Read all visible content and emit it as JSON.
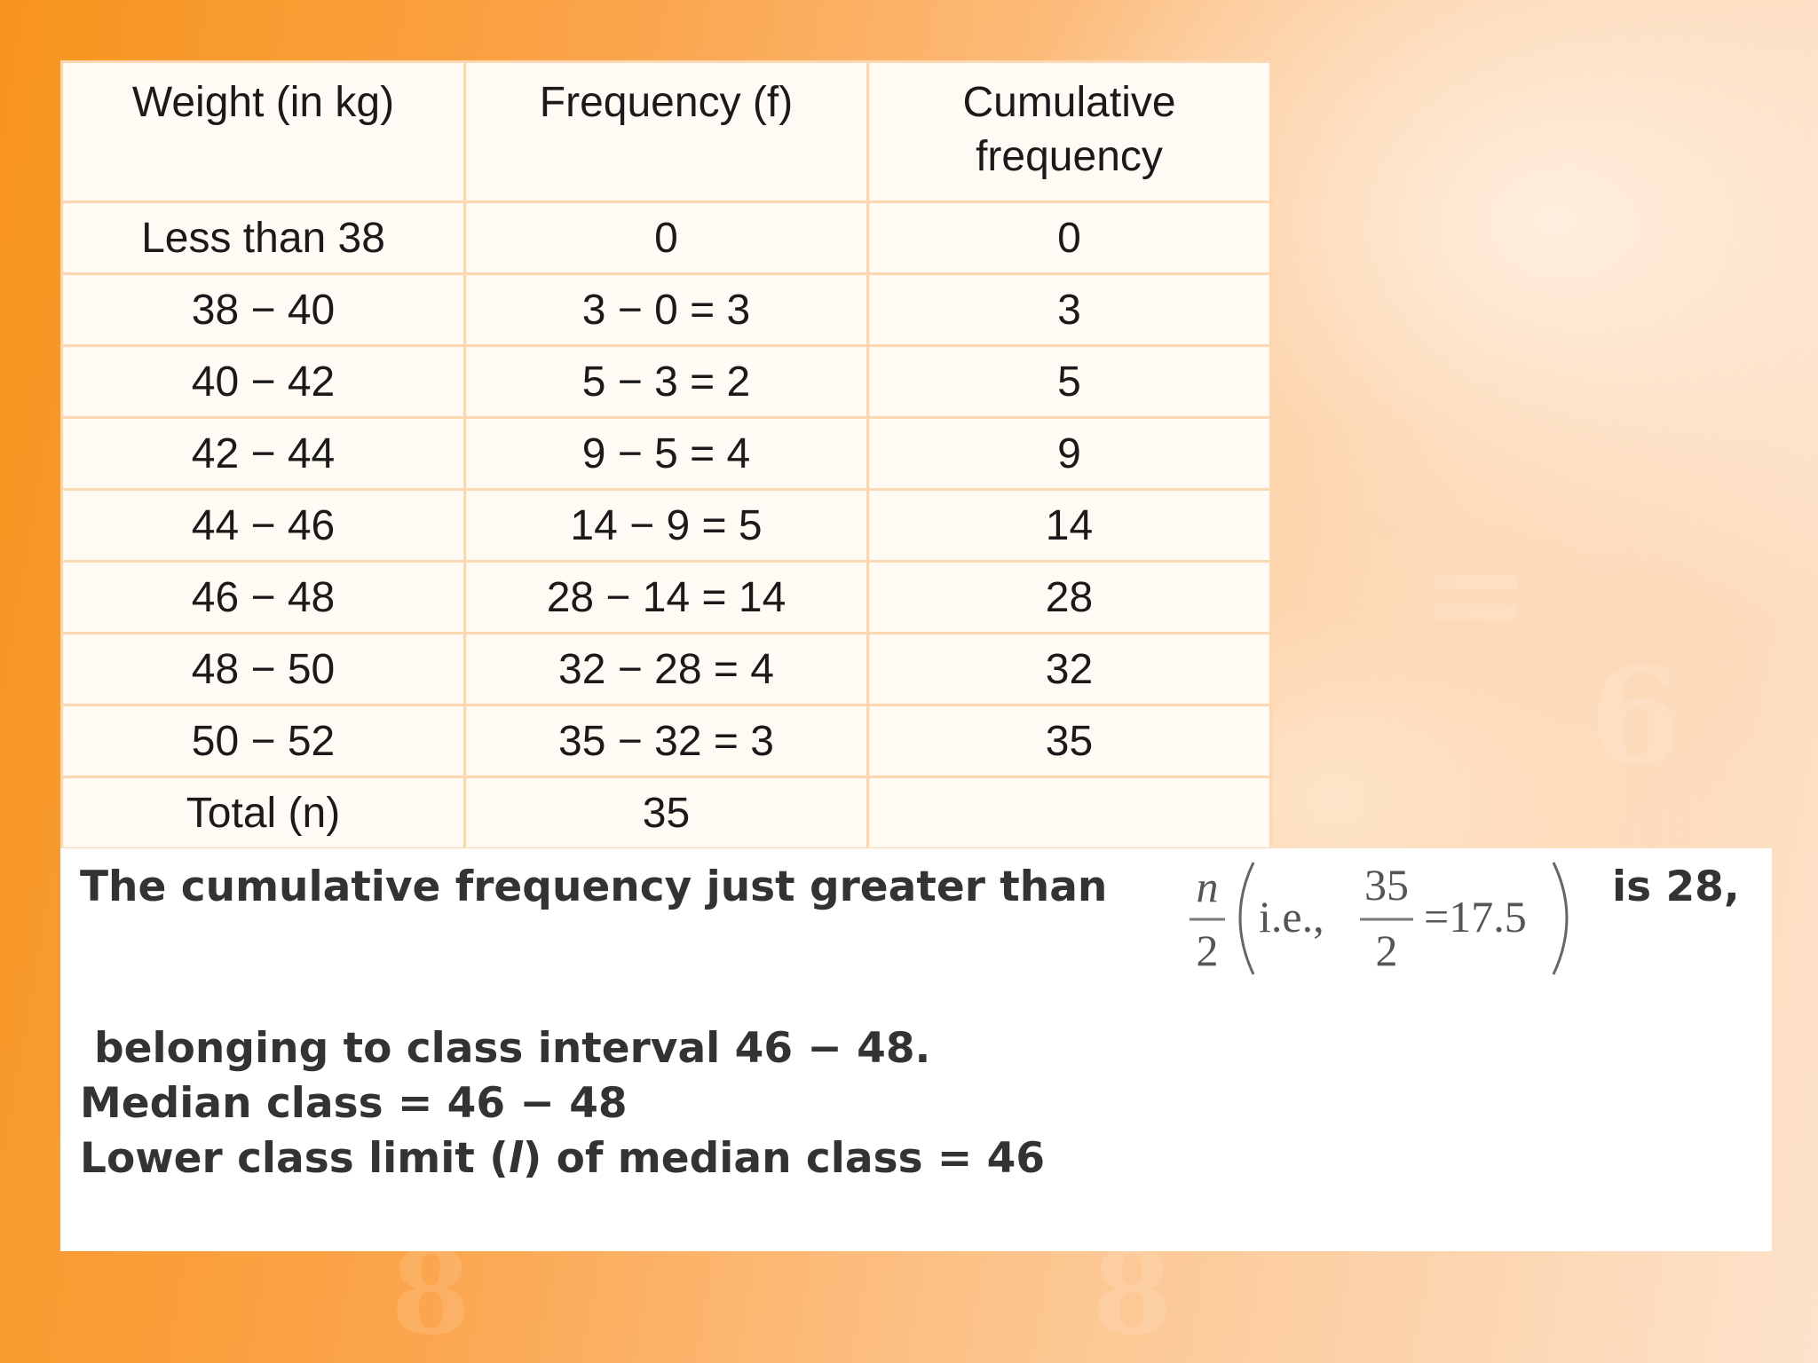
{
  "table": {
    "headers": [
      "Weight (in kg)",
      "Frequency (f)",
      "Cumulative frequency"
    ],
    "rows": [
      [
        "Less than 38",
        "0",
        "0"
      ],
      [
        "38 − 40",
        "3 − 0 = 3",
        "3"
      ],
      [
        "40 − 42",
        "5 − 3 = 2",
        "5"
      ],
      [
        "42 − 44",
        "9 − 5 = 4",
        "9"
      ],
      [
        "44 − 46",
        "14 − 9 = 5",
        "14"
      ],
      [
        "46 − 48",
        "28 − 14 = 14",
        "28"
      ],
      [
        "48 − 50",
        "32 − 28 = 4",
        "32"
      ],
      [
        "50 − 52",
        "35 − 32 = 3",
        "35"
      ],
      [
        "Total (n)",
        "35",
        ""
      ]
    ]
  },
  "explanation": {
    "line1_before": "The cumulative frequency just greater than",
    "line1_after": "is 28,",
    "formula": {
      "n_num": "n",
      "n_den": "2",
      "ie": "i.e.,",
      "frac_num": "35",
      "frac_den": "2",
      "result": "=17.5"
    },
    "line2": "belonging to class interval 46 − 48.",
    "line3": "Median class = 46 − 48",
    "line4_before": "Lower class limit (",
    "line4_var": "l",
    "line4_after": ") of median class = 46"
  }
}
